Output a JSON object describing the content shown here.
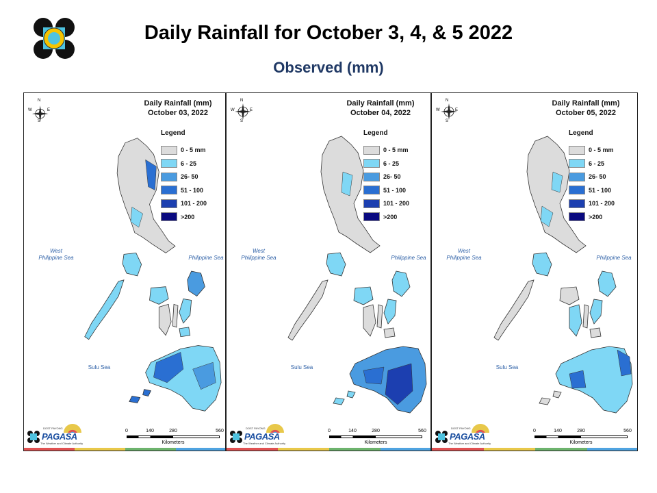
{
  "header": {
    "title": "Daily Rainfall for October 3, 4, & 5 2022",
    "subtitle": "Observed (mm)"
  },
  "legend": {
    "title": "Legend",
    "classes": [
      {
        "label": "0 - 5 mm",
        "color": "#dcdcdc"
      },
      {
        "label": "6 - 25",
        "color": "#7fd7f5"
      },
      {
        "label": "26- 50",
        "color": "#4a9be0"
      },
      {
        "label": "51 - 100",
        "color": "#2a6fd2"
      },
      {
        "label": "101 - 200",
        "color": "#1c3fb0"
      },
      {
        "label": ">200",
        "color": "#0a0a80"
      }
    ]
  },
  "maps": [
    {
      "title_line1": "Daily Rainfall (mm)",
      "title_line2": "October 03, 2022",
      "west_sea": "West\nPhilippine Sea",
      "east_sea": "Philippine Sea",
      "sulu_sea": "Sulu Sea",
      "compass": {
        "n": "N",
        "s": "S",
        "e": "E",
        "w": "W"
      },
      "scale": {
        "ticks": [
          "0",
          "140",
          "280",
          "560"
        ],
        "unit": "Kilometers"
      },
      "brand": {
        "name": "PAGASA",
        "small": "DOST PAYONG",
        "tagline": "The Weather and Climate Authority"
      }
    },
    {
      "title_line1": "Daily Rainfall (mm)",
      "title_line2": "October 04, 2022",
      "west_sea": "West\nPhilippine Sea",
      "east_sea": "Philippine Sea",
      "sulu_sea": "Sulu Sea",
      "compass": {
        "n": "N",
        "s": "S",
        "e": "E",
        "w": "W"
      },
      "scale": {
        "ticks": [
          "0",
          "140",
          "280",
          "560"
        ],
        "unit": "Kilometers"
      },
      "brand": {
        "name": "PAGASA",
        "small": "DOST PAYONG",
        "tagline": "The Weather and Climate Authority"
      }
    },
    {
      "title_line1": "Daily Rainfall (mm)",
      "title_line2": "October 05, 2022",
      "west_sea": "West\nPhilippine Sea",
      "east_sea": "Philippine Sea",
      "sulu_sea": "Sulu Sea",
      "compass": {
        "n": "N",
        "s": "S",
        "e": "E",
        "w": "W"
      },
      "scale": {
        "ticks": [
          "0",
          "140",
          "280",
          "560"
        ],
        "unit": "Kilometers"
      },
      "brand": {
        "name": "PAGASA",
        "small": "DOST PAYONG",
        "tagline": "The Weather and Climate Authority"
      }
    }
  ],
  "bottom_bar_colors": [
    "#e05252",
    "#e8c84a",
    "#6db36d",
    "#4fa3e0"
  ]
}
